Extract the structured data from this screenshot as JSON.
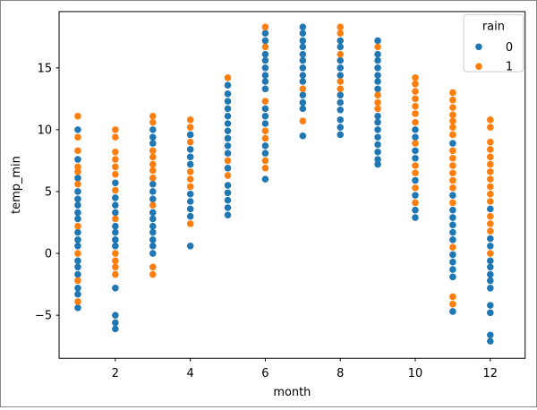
{
  "figure": {
    "background": "#ffffff",
    "border_color": "#8a8a8a"
  },
  "chart_data": {
    "type": "scatter",
    "title": "",
    "xlabel": "month",
    "ylabel": "temp_min",
    "xlim": [
      0.5,
      12.93
    ],
    "ylim": [
      -8.48,
      19.55
    ],
    "xticks": [
      2,
      4,
      6,
      8,
      10,
      12
    ],
    "yticks": [
      -5,
      0,
      5,
      10,
      15
    ],
    "grid": false,
    "legend": {
      "title": "rain",
      "position": "upper right",
      "entries": [
        {
          "label": "0",
          "color": "#1f77b4"
        },
        {
          "label": "1",
          "color": "#ff7f0e"
        }
      ]
    },
    "series": [
      {
        "name": "rain=0",
        "label": "0",
        "color": "#1f77b4",
        "points": [
          [
            1,
            10.0
          ],
          [
            1,
            7.6
          ],
          [
            1,
            6.1
          ],
          [
            1,
            5.0
          ],
          [
            1,
            4.4
          ],
          [
            1,
            3.9
          ],
          [
            1,
            3.3
          ],
          [
            1,
            2.8
          ],
          [
            1,
            1.7
          ],
          [
            1,
            1.1
          ],
          [
            1,
            0.6
          ],
          [
            1,
            -0.6
          ],
          [
            1,
            -1.1
          ],
          [
            1,
            -1.7
          ],
          [
            1,
            -2.8
          ],
          [
            1,
            -3.3
          ],
          [
            1,
            -4.4
          ],
          [
            2,
            5.7
          ],
          [
            2,
            4.5
          ],
          [
            2,
            3.9
          ],
          [
            2,
            3.3
          ],
          [
            2,
            2.2
          ],
          [
            2,
            1.7
          ],
          [
            2,
            1.1
          ],
          [
            2,
            0.6
          ],
          [
            2,
            -2.8
          ],
          [
            2,
            -5.0
          ],
          [
            2,
            -5.6
          ],
          [
            2,
            -6.1
          ],
          [
            3,
            10.0
          ],
          [
            3,
            9.4
          ],
          [
            3,
            8.9
          ],
          [
            3,
            5.6
          ],
          [
            3,
            5.0
          ],
          [
            3,
            4.4
          ],
          [
            3,
            3.3
          ],
          [
            3,
            2.8
          ],
          [
            3,
            2.2
          ],
          [
            3,
            1.7
          ],
          [
            3,
            1.1
          ],
          [
            3,
            0.6
          ],
          [
            3,
            0.0
          ],
          [
            4,
            9.6
          ],
          [
            4,
            8.4
          ],
          [
            4,
            7.8
          ],
          [
            4,
            7.2
          ],
          [
            4,
            4.8
          ],
          [
            4,
            4.2
          ],
          [
            4,
            3.6
          ],
          [
            4,
            3.0
          ],
          [
            4,
            0.6
          ],
          [
            5,
            13.6
          ],
          [
            5,
            12.9
          ],
          [
            5,
            12.3
          ],
          [
            5,
            11.7
          ],
          [
            5,
            11.1
          ],
          [
            5,
            10.5
          ],
          [
            5,
            9.9
          ],
          [
            5,
            9.3
          ],
          [
            5,
            8.7
          ],
          [
            5,
            8.1
          ],
          [
            5,
            6.9
          ],
          [
            5,
            5.5
          ],
          [
            5,
            4.9
          ],
          [
            5,
            4.3
          ],
          [
            5,
            3.7
          ],
          [
            5,
            3.1
          ],
          [
            6,
            17.8
          ],
          [
            6,
            17.2
          ],
          [
            6,
            16.1
          ],
          [
            6,
            15.6
          ],
          [
            6,
            15.0
          ],
          [
            6,
            14.4
          ],
          [
            6,
            13.9
          ],
          [
            6,
            13.3
          ],
          [
            6,
            11.7
          ],
          [
            6,
            11.1
          ],
          [
            6,
            10.5
          ],
          [
            6,
            8.7
          ],
          [
            6,
            8.1
          ],
          [
            6,
            6.0
          ],
          [
            7,
            18.3
          ],
          [
            7,
            17.8
          ],
          [
            7,
            17.2
          ],
          [
            7,
            16.7
          ],
          [
            7,
            16.1
          ],
          [
            7,
            15.6
          ],
          [
            7,
            15.0
          ],
          [
            7,
            14.4
          ],
          [
            7,
            13.9
          ],
          [
            7,
            12.8
          ],
          [
            7,
            12.2
          ],
          [
            7,
            11.7
          ],
          [
            7,
            9.5
          ],
          [
            8,
            17.2
          ],
          [
            8,
            16.7
          ],
          [
            8,
            15.6
          ],
          [
            8,
            15.0
          ],
          [
            8,
            14.4
          ],
          [
            8,
            12.8
          ],
          [
            8,
            12.2
          ],
          [
            8,
            11.6
          ],
          [
            8,
            10.8
          ],
          [
            8,
            10.2
          ],
          [
            8,
            9.6
          ],
          [
            9,
            17.2
          ],
          [
            9,
            16.1
          ],
          [
            9,
            15.6
          ],
          [
            9,
            15.0
          ],
          [
            9,
            14.4
          ],
          [
            9,
            13.9
          ],
          [
            9,
            13.3
          ],
          [
            9,
            11.1
          ],
          [
            9,
            10.6
          ],
          [
            9,
            10.0
          ],
          [
            9,
            9.4
          ],
          [
            9,
            8.8
          ],
          [
            9,
            8.2
          ],
          [
            9,
            7.6
          ],
          [
            9,
            7.2
          ],
          [
            10,
            10.0
          ],
          [
            10,
            9.4
          ],
          [
            10,
            8.3
          ],
          [
            10,
            7.7
          ],
          [
            10,
            5.9
          ],
          [
            10,
            4.7
          ],
          [
            10,
            3.5
          ],
          [
            10,
            2.9
          ],
          [
            11,
            8.9
          ],
          [
            11,
            4.7
          ],
          [
            11,
            3.5
          ],
          [
            11,
            2.9
          ],
          [
            11,
            2.3
          ],
          [
            11,
            1.7
          ],
          [
            11,
            1.1
          ],
          [
            11,
            -0.1
          ],
          [
            11,
            -0.7
          ],
          [
            11,
            -1.3
          ],
          [
            11,
            -1.9
          ],
          [
            11,
            -4.7
          ],
          [
            12,
            3.6
          ],
          [
            12,
            1.2
          ],
          [
            12,
            0.6
          ],
          [
            12,
            -0.6
          ],
          [
            12,
            -1.1
          ],
          [
            12,
            -1.7
          ],
          [
            12,
            -2.2
          ],
          [
            12,
            -2.8
          ],
          [
            12,
            -4.2
          ],
          [
            12,
            -4.8
          ],
          [
            12,
            -6.6
          ],
          [
            12,
            -7.1
          ]
        ]
      },
      {
        "name": "rain=1",
        "label": "1",
        "color": "#ff7f0e",
        "points": [
          [
            1,
            11.1
          ],
          [
            1,
            9.4
          ],
          [
            1,
            8.3
          ],
          [
            1,
            7.0
          ],
          [
            1,
            6.6
          ],
          [
            1,
            5.6
          ],
          [
            1,
            2.2
          ],
          [
            1,
            0.0
          ],
          [
            1,
            -2.2
          ],
          [
            1,
            -3.9
          ],
          [
            2,
            10.0
          ],
          [
            2,
            9.4
          ],
          [
            2,
            8.2
          ],
          [
            2,
            7.6
          ],
          [
            2,
            7.0
          ],
          [
            2,
            6.4
          ],
          [
            2,
            5.1
          ],
          [
            2,
            2.8
          ],
          [
            2,
            0.0
          ],
          [
            2,
            -0.6
          ],
          [
            2,
            -1.1
          ],
          [
            2,
            -1.7
          ],
          [
            3,
            11.1
          ],
          [
            3,
            10.6
          ],
          [
            3,
            8.3
          ],
          [
            3,
            7.8
          ],
          [
            3,
            7.2
          ],
          [
            3,
            6.7
          ],
          [
            3,
            6.1
          ],
          [
            3,
            3.9
          ],
          [
            3,
            -1.1
          ],
          [
            3,
            -1.7
          ],
          [
            4,
            10.8
          ],
          [
            4,
            10.2
          ],
          [
            4,
            9.0
          ],
          [
            4,
            6.6
          ],
          [
            4,
            6.0
          ],
          [
            4,
            5.4
          ],
          [
            4,
            2.4
          ],
          [
            5,
            14.2
          ],
          [
            5,
            7.5
          ],
          [
            5,
            6.3
          ],
          [
            6,
            18.3
          ],
          [
            6,
            16.7
          ],
          [
            6,
            12.3
          ],
          [
            6,
            9.9
          ],
          [
            6,
            9.3
          ],
          [
            6,
            7.5
          ],
          [
            6,
            6.9
          ],
          [
            7,
            13.3
          ],
          [
            7,
            10.7
          ],
          [
            8,
            18.3
          ],
          [
            8,
            17.8
          ],
          [
            8,
            16.1
          ],
          [
            8,
            13.9
          ],
          [
            8,
            13.3
          ],
          [
            9,
            16.7
          ],
          [
            9,
            12.8
          ],
          [
            9,
            12.2
          ],
          [
            9,
            11.7
          ],
          [
            10,
            14.2
          ],
          [
            10,
            13.7
          ],
          [
            10,
            13.1
          ],
          [
            10,
            12.5
          ],
          [
            10,
            11.9
          ],
          [
            10,
            11.3
          ],
          [
            10,
            10.6
          ],
          [
            10,
            8.9
          ],
          [
            10,
            7.1
          ],
          [
            10,
            6.5
          ],
          [
            10,
            5.3
          ],
          [
            10,
            4.1
          ],
          [
            11,
            13.0
          ],
          [
            11,
            12.4
          ],
          [
            11,
            11.8
          ],
          [
            11,
            11.2
          ],
          [
            11,
            10.7
          ],
          [
            11,
            10.2
          ],
          [
            11,
            9.6
          ],
          [
            11,
            8.3
          ],
          [
            11,
            7.7
          ],
          [
            11,
            7.1
          ],
          [
            11,
            6.5
          ],
          [
            11,
            5.9
          ],
          [
            11,
            5.3
          ],
          [
            11,
            4.1
          ],
          [
            11,
            0.5
          ],
          [
            11,
            -3.5
          ],
          [
            11,
            -4.1
          ],
          [
            12,
            10.8
          ],
          [
            12,
            10.2
          ],
          [
            12,
            9.0
          ],
          [
            12,
            8.4
          ],
          [
            12,
            7.8
          ],
          [
            12,
            7.2
          ],
          [
            12,
            6.6
          ],
          [
            12,
            6.0
          ],
          [
            12,
            5.4
          ],
          [
            12,
            4.8
          ],
          [
            12,
            4.2
          ],
          [
            12,
            3.0
          ],
          [
            12,
            2.4
          ],
          [
            12,
            1.8
          ],
          [
            12,
            0.0
          ]
        ]
      }
    ]
  }
}
